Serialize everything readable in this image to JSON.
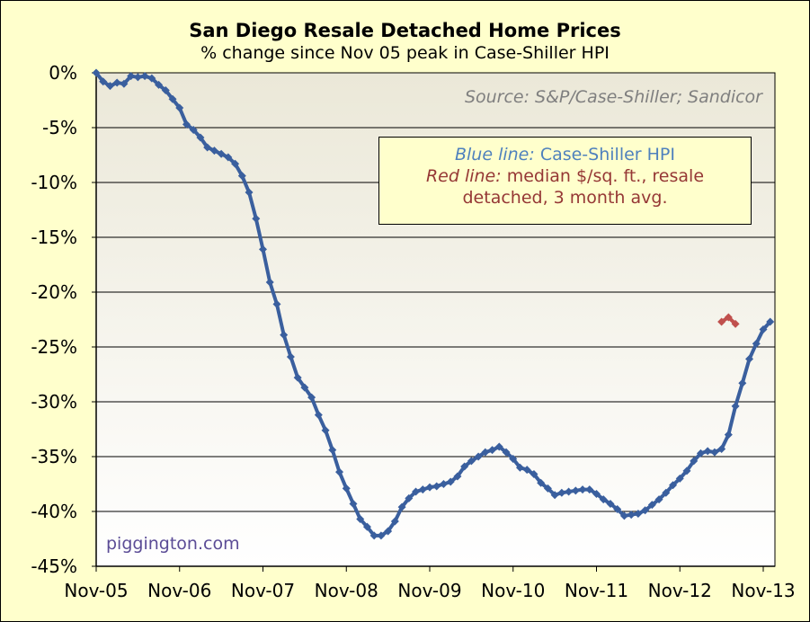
{
  "chart_data": {
    "type": "line",
    "title": "San Diego Resale Detached Home Prices",
    "subtitle": "% change since Nov 05 peak in Case-Shiller HPI",
    "source_note": "Source: S&P/Case-Shiller; Sandicor",
    "watermark": "piggington.com",
    "legend": {
      "blue_label": "Blue line:",
      "blue_text": "Case-Shiller HPI",
      "red_label": "Red line:",
      "red_text_1": "median $/sq. ft., resale",
      "red_text_2": "detached, 3 month avg."
    },
    "x_tick_labels": [
      "Nov-05",
      "Nov-06",
      "Nov-07",
      "Nov-08",
      "Nov-09",
      "Nov-10",
      "Nov-11",
      "Nov-12",
      "Nov-13"
    ],
    "y_tick_labels": [
      "0%",
      "-5%",
      "-10%",
      "-15%",
      "-20%",
      "-25%",
      "-30%",
      "-35%",
      "-40%",
      "-45%"
    ],
    "ylim": [
      -45,
      0
    ],
    "x_unit": "months since Nov-05",
    "grid": "horizontal",
    "colors": {
      "blue": "#3a5f9e",
      "red": "#c0504d",
      "plot_bg": "#eeecd9",
      "frame_bg": "#ffffcc"
    },
    "series": [
      {
        "name": "Case-Shiller HPI",
        "color": "#3a5f9e",
        "x_start": 0,
        "values": [
          0,
          -0.8,
          -1.2,
          -0.9,
          -1.0,
          -0.3,
          -0.4,
          -0.3,
          -0.5,
          -1.1,
          -1.6,
          -2.4,
          -3.2,
          -4.7,
          -5.2,
          -5.9,
          -6.8,
          -7.1,
          -7.4,
          -7.7,
          -8.3,
          -9.4,
          -10.9,
          -13.3,
          -16.1,
          -19.1,
          -21.1,
          -23.9,
          -25.9,
          -27.8,
          -28.7,
          -29.6,
          -31.2,
          -32.6,
          -34.4,
          -36.4,
          -37.9,
          -39.3,
          -40.7,
          -41.4,
          -42.2,
          -42.2,
          -41.8,
          -40.9,
          -39.6,
          -38.8,
          -38.2,
          -38.0,
          -37.8,
          -37.7,
          -37.5,
          -37.3,
          -36.8,
          -35.9,
          -35.4,
          -35.0,
          -34.6,
          -34.4,
          -34.1,
          -34.6,
          -35.2,
          -36.0,
          -36.2,
          -36.6,
          -37.4,
          -37.9,
          -38.5,
          -38.3,
          -38.2,
          -38.1,
          -38.0,
          -38.0,
          -38.4,
          -38.9,
          -39.3,
          -39.8,
          -40.4,
          -40.3,
          -40.2,
          -39.9,
          -39.4,
          -38.9,
          -38.3,
          -37.6,
          -37.0,
          -36.3,
          -35.4,
          -34.7,
          -34.5,
          -34.6,
          -34.3,
          -33.0,
          -30.4,
          -28.3,
          -26.1,
          -24.7,
          -23.4,
          -22.7
        ],
        "display_values": [
          0,
          -0.8,
          -1.2,
          -0.9,
          -1.0,
          -0.3,
          -0.4,
          -0.3,
          -0.5,
          -1.1,
          -1.6,
          -2.4,
          -3.2,
          -4.7,
          -5.2,
          -5.9,
          -6.8,
          -7.1,
          -7.4,
          -7.7,
          -8.3,
          -9.4,
          -10.9,
          -13.3,
          -16.1,
          -19.1,
          -21.1,
          -23.9,
          -25.9,
          -27.8,
          -28.7,
          -29.6,
          -31.2,
          -32.6,
          -34.4,
          -36.4,
          -37.9,
          -39.3,
          -40.7,
          -41.4,
          -42.2,
          -42.2,
          -41.8,
          -40.9,
          -39.6,
          -38.8,
          -38.2,
          -38.0,
          -37.8,
          -37.7,
          -37.5,
          -37.3,
          -36.8,
          -35.9,
          -35.4,
          -35.0,
          -34.6,
          -34.4,
          -34.1,
          -34.6,
          -35.2,
          -36.0,
          -36.2,
          -36.6,
          -37.4,
          -37.9,
          -38.5,
          -38.3,
          -38.2,
          -38.1,
          -38.0,
          -38.0,
          -38.4,
          -38.9,
          -39.3,
          -39.8,
          -40.4,
          -40.3,
          -40.2,
          -39.9,
          -39.4,
          -38.9,
          -38.3,
          -37.6,
          -37.0,
          -36.3,
          -35.4,
          -34.7,
          -34.5,
          -34.6,
          -34.3,
          -33.0,
          -30.4,
          -28.3,
          -26.1,
          -24.7,
          -23.4,
          -22.7
        ]
      },
      {
        "name": "median $/sq. ft., resale detached, 3 month avg.",
        "color": "#c0504d",
        "x_start": 90,
        "values": [
          -22.7,
          -22.3,
          -22.9
        ]
      }
    ]
  }
}
